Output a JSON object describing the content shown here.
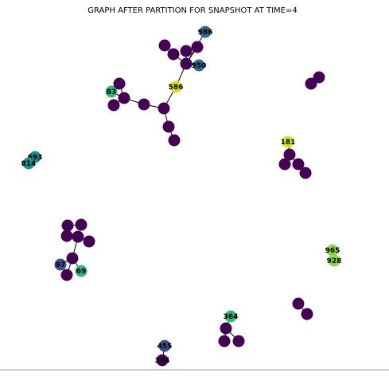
{
  "figure": {
    "title": "GRAPH AFTER PARTITION FOR SNAPSHOT AT TIME=4"
  },
  "palette": {
    "purple": "#440154",
    "indigo": "#3b528b",
    "steel_blue": "#31688e",
    "teal": "#21918c",
    "green": "#35b779",
    "lime": "#90d743",
    "yellow": "#d8e219",
    "edge": "#000000"
  },
  "nodes": [
    {
      "id": "986",
      "color": "#31688e"
    },
    {
      "id": "950",
      "color": "#31688e"
    },
    {
      "id": "586",
      "color": "#d8e219"
    },
    {
      "id": "83",
      "color": "#35b779"
    },
    {
      "id": "693",
      "color": "#21918c"
    },
    {
      "id": "814",
      "color": "#21918c"
    },
    {
      "id": "181",
      "color": "#d8e219"
    },
    {
      "id": "965",
      "color": "#90d743"
    },
    {
      "id": "928",
      "color": "#90d743"
    },
    {
      "id": "97",
      "color": "#3b528b"
    },
    {
      "id": "69",
      "color": "#35b779"
    },
    {
      "id": "364",
      "color": "#35b779"
    },
    {
      "id": "455",
      "color": "#3b528b"
    },
    {
      "id": "394",
      "color": "#440154"
    },
    {
      "id": "",
      "color": "#440154"
    },
    {
      "id": "",
      "color": "#440154"
    },
    {
      "id": "",
      "color": "#440154"
    },
    {
      "id": "",
      "color": "#440154"
    },
    {
      "id": "",
      "color": "#440154"
    },
    {
      "id": "",
      "color": "#440154"
    },
    {
      "id": "",
      "color": "#440154"
    },
    {
      "id": "",
      "color": "#440154"
    },
    {
      "id": "",
      "color": "#440154"
    },
    {
      "id": "",
      "color": "#440154"
    },
    {
      "id": "",
      "color": "#440154"
    },
    {
      "id": "",
      "color": "#440154"
    },
    {
      "id": "",
      "color": "#440154"
    },
    {
      "id": "",
      "color": "#440154"
    },
    {
      "id": "",
      "color": "#440154"
    },
    {
      "id": "",
      "color": "#440154"
    },
    {
      "id": "",
      "color": "#440154"
    },
    {
      "id": "",
      "color": "#440154"
    },
    {
      "id": "",
      "color": "#440154"
    },
    {
      "id": "",
      "color": "#440154"
    },
    {
      "id": "",
      "color": "#440154"
    },
    {
      "id": "",
      "color": "#440154"
    },
    {
      "id": "",
      "color": "#440154"
    },
    {
      "id": "",
      "color": "#440154"
    },
    {
      "id": "",
      "color": "#440154"
    },
    {
      "id": "",
      "color": "#440154"
    },
    {
      "id": "",
      "color": "#440154"
    },
    {
      "id": "",
      "color": "#440154"
    },
    {
      "id": "",
      "color": "#440154"
    },
    {
      "id": "",
      "color": "#440154"
    },
    {
      "id": "",
      "color": "#440154"
    },
    {
      "id": "",
      "color": "#440154"
    },
    {
      "id": "",
      "color": "#440154"
    },
    {
      "id": "",
      "color": "#440154"
    }
  ]
}
